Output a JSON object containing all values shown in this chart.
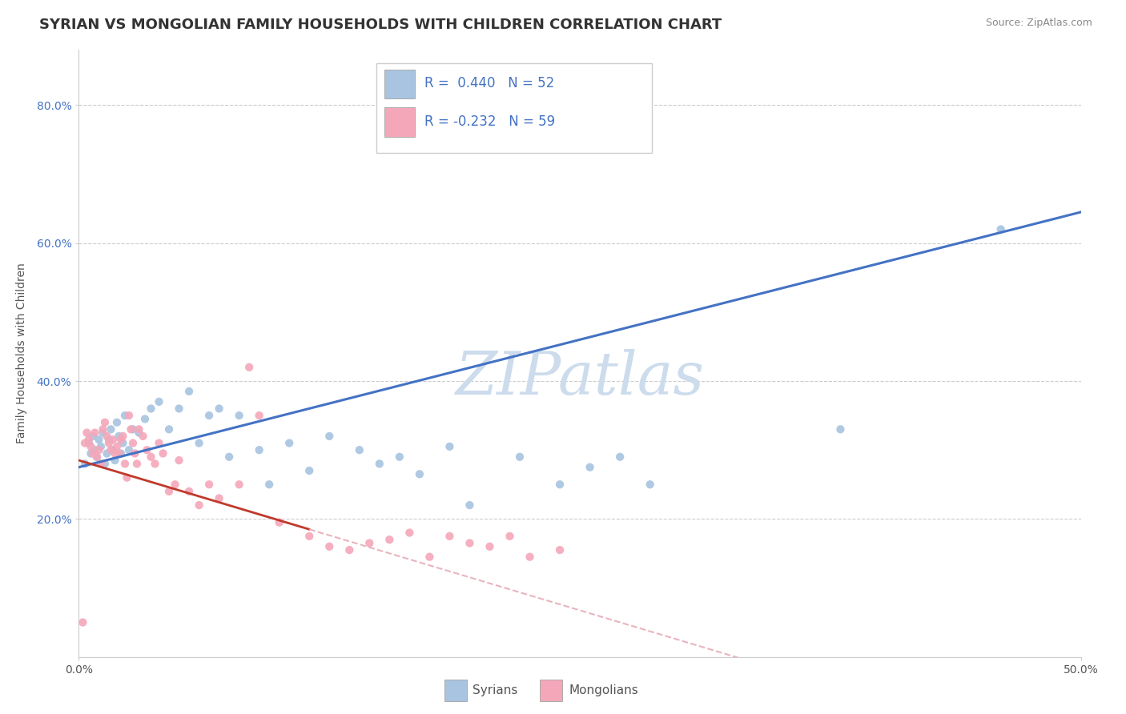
{
  "title": "SYRIAN VS MONGOLIAN FAMILY HOUSEHOLDS WITH CHILDREN CORRELATION CHART",
  "source": "Source: ZipAtlas.com",
  "ylabel": "Family Households with Children",
  "xlim": [
    0.0,
    0.5
  ],
  "ylim": [
    0.0,
    0.88
  ],
  "ytick_positions": [
    0.2,
    0.4,
    0.6,
    0.8
  ],
  "ytick_labels": [
    "20.0%",
    "40.0%",
    "60.0%",
    "80.0%"
  ],
  "legend_r1_label": "R =  0.440   N = 52",
  "legend_r2_label": "R = -0.232   N = 59",
  "syrian_color": "#a8c4e0",
  "mongolian_color": "#f4a7b9",
  "regression_syrian_color": "#4472c4",
  "regression_mongolian_solid_color": "#c0392b",
  "regression_mongolian_dashed_color": "#e8b4be",
  "watermark": "ZIPatlas",
  "watermark_color": "#ccdcec",
  "syrian_r": 0.44,
  "syrian_n": 52,
  "mongolian_r": -0.232,
  "mongolian_n": 59,
  "syrians_x": [
    0.003,
    0.005,
    0.006,
    0.007,
    0.008,
    0.009,
    0.01,
    0.011,
    0.012,
    0.013,
    0.014,
    0.015,
    0.016,
    0.017,
    0.018,
    0.019,
    0.02,
    0.021,
    0.022,
    0.023,
    0.025,
    0.027,
    0.03,
    0.033,
    0.036,
    0.04,
    0.045,
    0.05,
    0.055,
    0.06,
    0.065,
    0.07,
    0.075,
    0.08,
    0.09,
    0.095,
    0.105,
    0.115,
    0.125,
    0.14,
    0.15,
    0.16,
    0.17,
    0.185,
    0.195,
    0.22,
    0.24,
    0.255,
    0.27,
    0.285,
    0.38,
    0.46
  ],
  "syrians_y": [
    0.28,
    0.31,
    0.295,
    0.32,
    0.3,
    0.29,
    0.315,
    0.305,
    0.325,
    0.28,
    0.295,
    0.315,
    0.33,
    0.3,
    0.285,
    0.34,
    0.32,
    0.295,
    0.31,
    0.35,
    0.3,
    0.33,
    0.325,
    0.345,
    0.36,
    0.37,
    0.33,
    0.36,
    0.385,
    0.31,
    0.35,
    0.36,
    0.29,
    0.35,
    0.3,
    0.25,
    0.31,
    0.27,
    0.32,
    0.3,
    0.28,
    0.29,
    0.265,
    0.305,
    0.22,
    0.29,
    0.25,
    0.275,
    0.29,
    0.25,
    0.33,
    0.62
  ],
  "mongolians_x": [
    0.002,
    0.003,
    0.004,
    0.005,
    0.006,
    0.007,
    0.008,
    0.009,
    0.01,
    0.011,
    0.012,
    0.013,
    0.014,
    0.015,
    0.016,
    0.017,
    0.018,
    0.019,
    0.02,
    0.021,
    0.022,
    0.023,
    0.024,
    0.025,
    0.026,
    0.027,
    0.028,
    0.029,
    0.03,
    0.032,
    0.034,
    0.036,
    0.038,
    0.04,
    0.042,
    0.045,
    0.048,
    0.05,
    0.055,
    0.06,
    0.065,
    0.07,
    0.08,
    0.085,
    0.09,
    0.1,
    0.115,
    0.125,
    0.135,
    0.145,
    0.155,
    0.165,
    0.175,
    0.185,
    0.195,
    0.205,
    0.215,
    0.225,
    0.24
  ],
  "mongolians_y": [
    0.05,
    0.31,
    0.325,
    0.315,
    0.305,
    0.295,
    0.325,
    0.29,
    0.3,
    0.28,
    0.33,
    0.34,
    0.32,
    0.31,
    0.3,
    0.315,
    0.295,
    0.305,
    0.295,
    0.315,
    0.32,
    0.28,
    0.26,
    0.35,
    0.33,
    0.31,
    0.295,
    0.28,
    0.33,
    0.32,
    0.3,
    0.29,
    0.28,
    0.31,
    0.295,
    0.24,
    0.25,
    0.285,
    0.24,
    0.22,
    0.25,
    0.23,
    0.25,
    0.42,
    0.35,
    0.195,
    0.175,
    0.16,
    0.155,
    0.165,
    0.17,
    0.18,
    0.145,
    0.175,
    0.165,
    0.16,
    0.175,
    0.145,
    0.155
  ],
  "title_fontsize": 13,
  "axis_label_fontsize": 10,
  "tick_fontsize": 10,
  "source_fontsize": 9,
  "legend_fontsize": 12
}
